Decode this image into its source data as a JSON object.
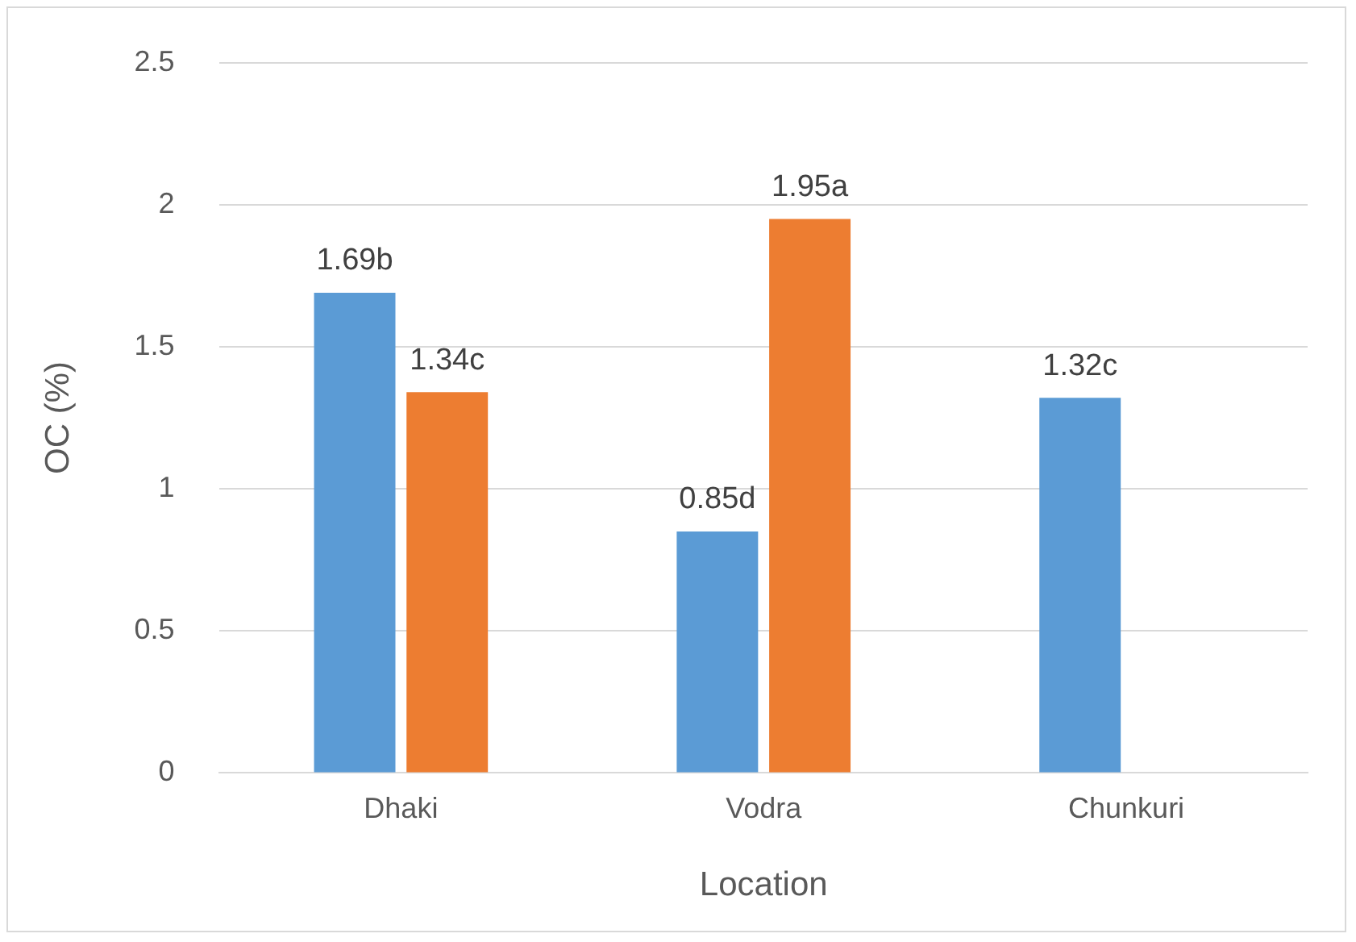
{
  "chart_data": {
    "type": "bar",
    "xlabel": "Location",
    "ylabel": "OC (%)",
    "categories": [
      "Dhaki",
      "Vodra",
      "Chunkuri"
    ],
    "series": [
      {
        "color": "#5b9bd5",
        "values": [
          1.69,
          0.85,
          1.32
        ],
        "value_labels": [
          "1.69b",
          "0.85d",
          "1.32c"
        ]
      },
      {
        "color": "#ed7d31",
        "values": [
          1.34,
          1.95,
          null
        ],
        "value_labels": [
          "1.34c",
          "1.95a",
          null
        ]
      }
    ],
    "ylim": [
      0,
      2.5
    ],
    "yticks": [
      0,
      0.5,
      1,
      1.5,
      2,
      2.5
    ],
    "grid": "y",
    "legend": false
  }
}
